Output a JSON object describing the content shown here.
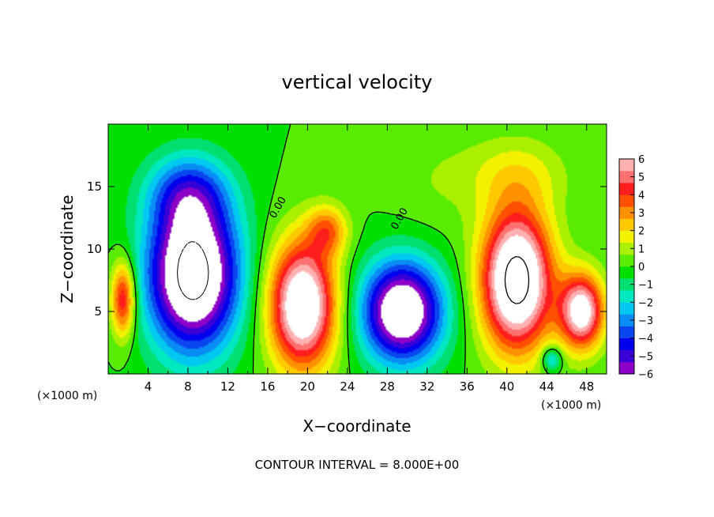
{
  "chart_data": {
    "type": "heatmap",
    "title": "vertical velocity",
    "xlabel": "X−coordinate",
    "ylabel": "Z−coordinate",
    "x_unit_label": "(×1000 m)",
    "x_unit_label_right": "(×1000 m)",
    "xlim": [
      0,
      50
    ],
    "ylim": [
      0,
      20
    ],
    "x_ticks": [
      "4",
      "8",
      "12",
      "16",
      "20",
      "24",
      "28",
      "32",
      "36",
      "40",
      "44",
      "48"
    ],
    "y_ticks": [
      "5",
      "10",
      "15"
    ],
    "colorbar": {
      "ticks": [
        "6",
        "5",
        "4",
        "3",
        "2",
        "1",
        "0",
        "−1",
        "−2",
        "−3",
        "−4",
        "−5",
        "−6"
      ],
      "range": [
        -6,
        6
      ],
      "colors": [
        "#8c00c8",
        "#3a00d8",
        "#0000ee",
        "#0a46f0",
        "#0a8cf5",
        "#00c8f0",
        "#00e8c0",
        "#00e070",
        "#00e000",
        "#5aec00",
        "#aaf000",
        "#f2f200",
        "#ffc800",
        "#ff9000",
        "#ff5000",
        "#ff1e1e",
        "#ff7070",
        "#ffb0b0"
      ]
    },
    "contour_labels": [
      "0.00",
      "0.00"
    ],
    "footer": "CONTOUR INTERVAL = 8.000E+00",
    "cells": [
      {
        "x": 1.5,
        "z": 6,
        "sx": 1.2,
        "sz": 3,
        "w": 5
      },
      {
        "x": 8.5,
        "z": 8,
        "sx": 4.5,
        "sz": 6,
        "w": -9
      },
      {
        "x": 8,
        "z": 14.5,
        "sx": 4,
        "sz": 3,
        "w": -3
      },
      {
        "x": 19.5,
        "z": 5.5,
        "sx": 3.3,
        "sz": 5,
        "w": 8
      },
      {
        "x": 22,
        "z": 11.5,
        "sx": 2,
        "sz": 2,
        "w": 3
      },
      {
        "x": 29.5,
        "z": 5,
        "sx": 4,
        "sz": 4,
        "w": -8
      },
      {
        "x": 41,
        "z": 7.5,
        "sx": 3.5,
        "sz": 5.5,
        "w": 9
      },
      {
        "x": 47.5,
        "z": 5,
        "sx": 2.2,
        "sz": 3,
        "w": 7
      },
      {
        "x": 41,
        "z": 16,
        "sx": 5,
        "sz": 3,
        "w": 1.5
      },
      {
        "x": 33,
        "z": 15.5,
        "sx": 5,
        "sz": 4,
        "w": 0.6
      },
      {
        "x": 44.5,
        "z": 1.2,
        "sx": 1,
        "sz": 1,
        "w": -3
      }
    ]
  }
}
